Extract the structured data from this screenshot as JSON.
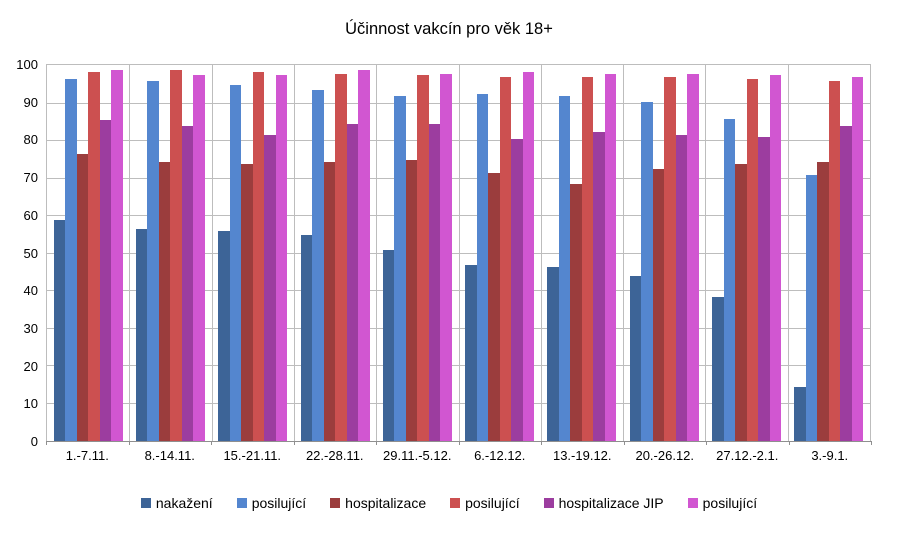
{
  "title": "Účinnost vakcín pro věk 18+",
  "chart_data": {
    "type": "bar",
    "title": "Účinnost vakcín pro věk 18+",
    "categories": [
      "1.-7.11.",
      "8.-14.11.",
      "15.-21.11.",
      "22.-28.11.",
      "29.11.-5.12.",
      "6.-12.12.",
      "13.-19.12.",
      "20.-26.12.",
      "27.12.-2.1.",
      "3.-9.1."
    ],
    "series": [
      {
        "name": "nakažení",
        "color": "#3D6497",
        "values": [
          59,
          56.5,
          56,
          55,
          51,
          47,
          46.5,
          44,
          38.5,
          14.5
        ]
      },
      {
        "name": "posilující",
        "color": "#5486CF",
        "values": [
          96.5,
          96,
          95,
          93.5,
          92,
          92.5,
          92,
          90.5,
          86,
          71
        ]
      },
      {
        "name": "hospitalizace",
        "color": "#9B3D3D",
        "values": [
          76.5,
          74.5,
          74,
          74.5,
          75,
          71.5,
          68.5,
          72.5,
          74,
          74.5
        ]
      },
      {
        "name": "posilující",
        "color": "#CC5050",
        "values": [
          98.5,
          99,
          98.5,
          98,
          97.5,
          97,
          97,
          97,
          96.5,
          96
        ]
      },
      {
        "name": "hospitalizace JIP",
        "color": "#9C3D9F",
        "values": [
          85.5,
          84,
          81.5,
          84.5,
          84.5,
          80.5,
          82.5,
          81.5,
          81,
          84
        ]
      },
      {
        "name": "posilující",
        "color": "#D156D1",
        "values": [
          99,
          97.5,
          97.5,
          99,
          98,
          98.5,
          98,
          98,
          97.5,
          97
        ]
      }
    ],
    "xlabel": "",
    "ylabel": "",
    "ylim": [
      0,
      100
    ],
    "ytick_step": 10,
    "grid": true,
    "legend_position": "bottom"
  },
  "colors": {
    "background": "#FFFFFF",
    "gridline": "#BDBDBD",
    "axis_line": "#8F8F8F",
    "text": "#000000"
  }
}
